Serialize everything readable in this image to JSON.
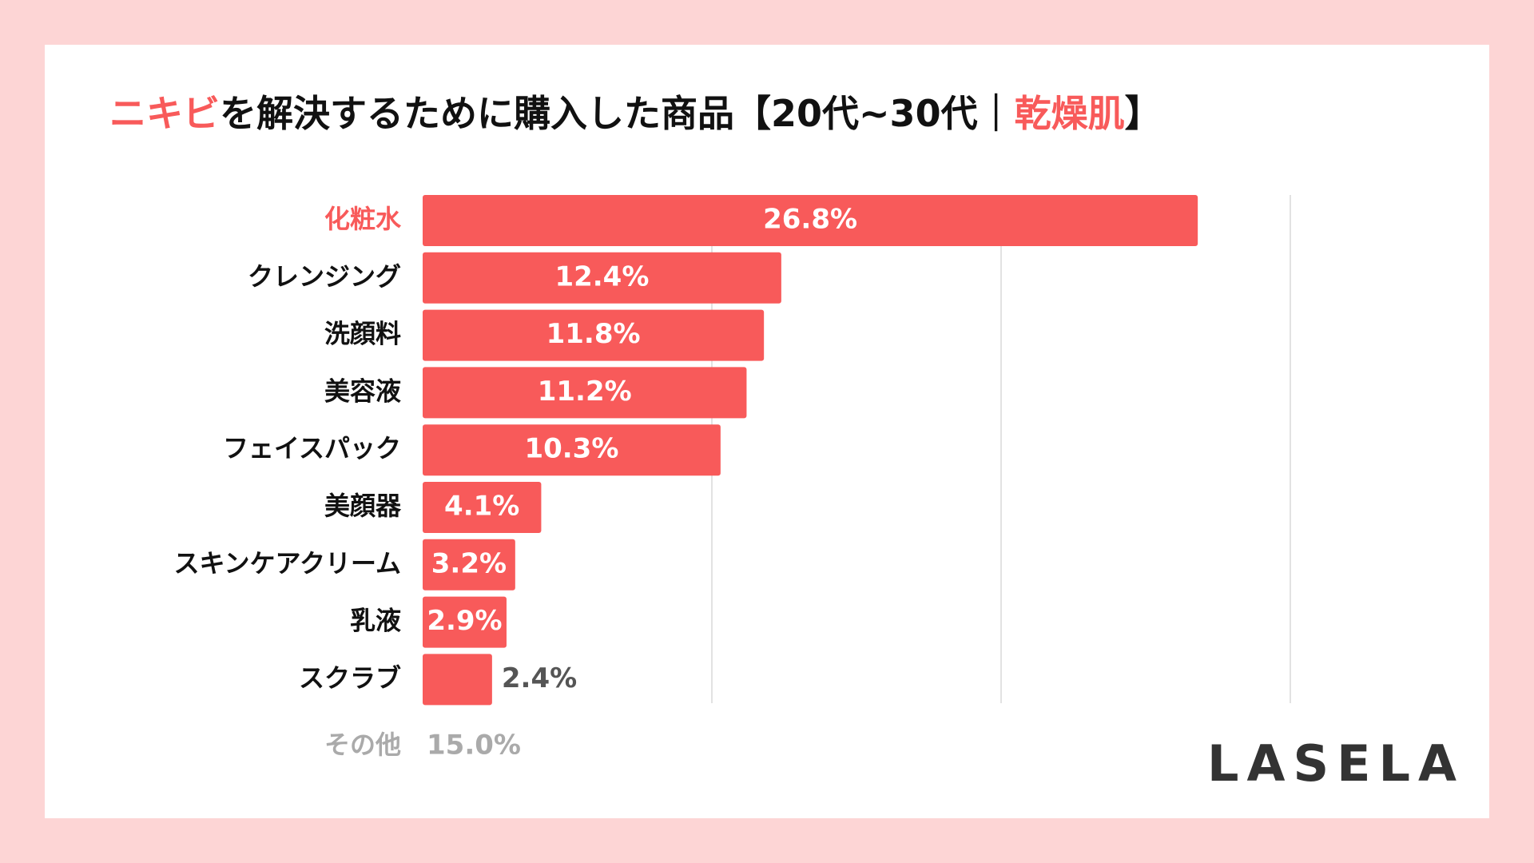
{
  "chart_data": {
    "type": "bar",
    "orientation": "horizontal",
    "title": [
      {
        "text": "ニキビ",
        "color": "#f85a5a"
      },
      {
        "text": "を解決するために購入した商品【20代~30代｜",
        "color": "#111111"
      },
      {
        "text": "乾燥肌",
        "color": "#f85a5a"
      },
      {
        "text": "】",
        "color": "#111111"
      }
    ],
    "categories": [
      "化粧水",
      "クレンジング",
      "洗顔料",
      "美容液",
      "フェイスパック",
      "美顔器",
      "スキンケアクリーム",
      "乳液",
      "スクラブ"
    ],
    "values": [
      26.8,
      12.4,
      11.8,
      11.2,
      10.3,
      4.1,
      3.2,
      2.9,
      2.4
    ],
    "value_labels": [
      "26.8%",
      "12.4%",
      "11.8%",
      "11.2%",
      "10.3%",
      "4.1%",
      "3.2%",
      "2.9%",
      "2.4%"
    ],
    "color": "#f85a5a",
    "highlight_index": 0,
    "xlim": [
      0,
      30
    ],
    "grid": [
      10,
      20,
      30
    ],
    "other": {
      "category": "その他",
      "label": "15.0%"
    },
    "logo": "LASELA"
  }
}
